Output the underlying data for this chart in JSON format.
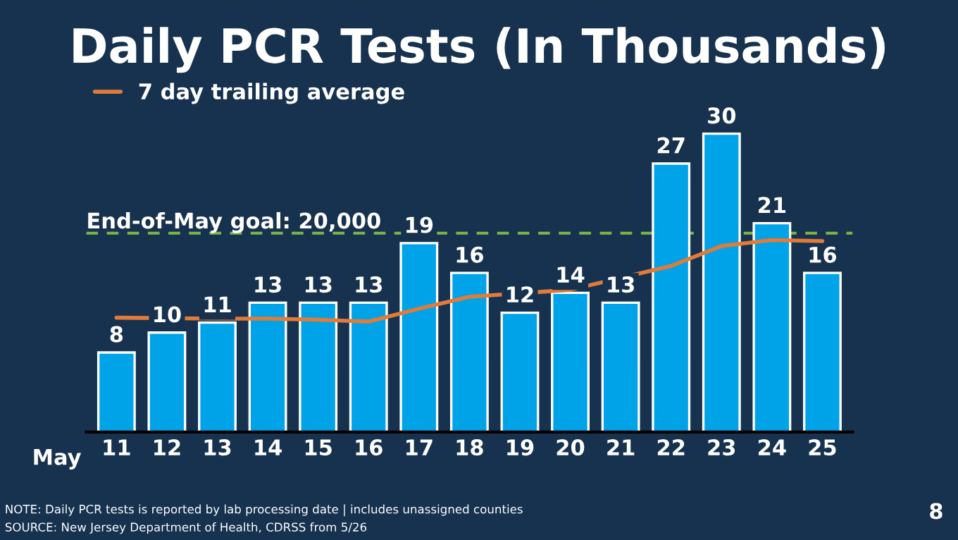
{
  "chart_data": {
    "type": "bar",
    "title": "Daily PCR Tests (In Thousands)",
    "categories": [
      "11",
      "12",
      "13",
      "14",
      "15",
      "16",
      "17",
      "18",
      "19",
      "20",
      "21",
      "22",
      "23",
      "24",
      "25"
    ],
    "series": [
      {
        "color": "#00a3e8",
        "values": [
          8,
          10,
          11,
          13,
          13,
          13,
          19,
          16,
          12,
          14,
          13,
          27,
          30,
          21,
          16
        ],
        "value_labels": [
          "8",
          "10",
          "11",
          "13",
          "13",
          "13",
          "19",
          "16",
          "12",
          "14",
          "13",
          "27",
          "30",
          "21",
          "16"
        ]
      },
      {
        "type": "line",
        "name": "7 day trailing average",
        "color": "#e07b39",
        "values": [
          11.5,
          null,
          11.4,
          11.4,
          11.3,
          11.1,
          12.4,
          13.6,
          null,
          14.3,
          null,
          16.7,
          18.7,
          19.3,
          19.2
        ]
      }
    ],
    "ref_lines": [
      {
        "axis": "y",
        "value": 20,
        "label": "End-of-May goal: 20,000",
        "color": "#7ab648",
        "line_style": "dashed"
      }
    ],
    "legend": "top left",
    "grid": false,
    "annotations": [
      "NOTE: Daily PCR tests is reported by lab processing date | includes unassigned counties",
      "SOURCE: New Jersey Department of Health, CDRSS from 5/26",
      "May",
      "8"
    ]
  }
}
